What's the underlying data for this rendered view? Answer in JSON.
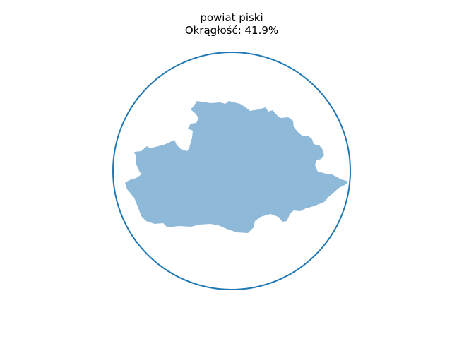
{
  "figure": {
    "title": "powiat piski",
    "subtitle": "Okrągłość: 41.9%",
    "circularity_percent": 41.9
  },
  "colors": {
    "background": "#ffffff",
    "circle_stroke": "#1f77b4",
    "shape_fill": "#8fb9d9",
    "text": "#000000"
  }
}
